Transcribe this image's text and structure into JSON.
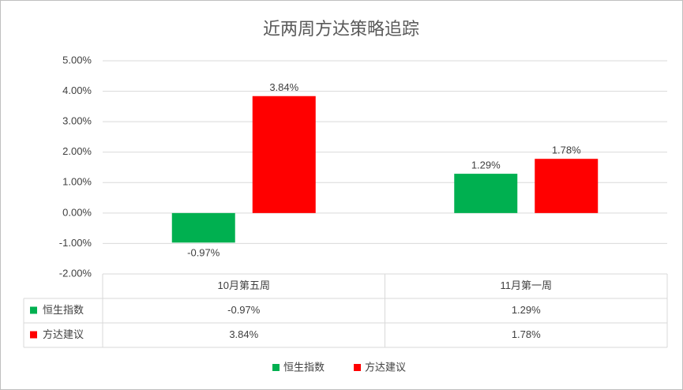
{
  "chart_data": {
    "type": "bar",
    "title": "近两周方达策略追踪",
    "categories": [
      "10月第五周",
      "11月第一周"
    ],
    "series": [
      {
        "name": "恒生指数",
        "color": "#00b050",
        "values": [
          -0.97,
          1.29
        ],
        "value_labels": [
          "-0.97%",
          "1.29%"
        ]
      },
      {
        "name": "方达建议",
        "color": "#ff0000",
        "values": [
          3.84,
          1.78
        ],
        "value_labels": [
          "3.84%",
          "1.78%"
        ]
      }
    ],
    "ylim": [
      -2,
      5
    ],
    "yticks": [
      {
        "value": -2,
        "label": "-2.00%"
      },
      {
        "value": -1,
        "label": "-1.00%"
      },
      {
        "value": 0,
        "label": "0.00%"
      },
      {
        "value": 1,
        "label": "1.00%"
      },
      {
        "value": 2,
        "label": "2.00%"
      },
      {
        "value": 3,
        "label": "3.00%"
      },
      {
        "value": 4,
        "label": "4.00%"
      },
      {
        "value": 5,
        "label": "5.00%"
      }
    ],
    "grid": true,
    "legend": "bottom"
  }
}
